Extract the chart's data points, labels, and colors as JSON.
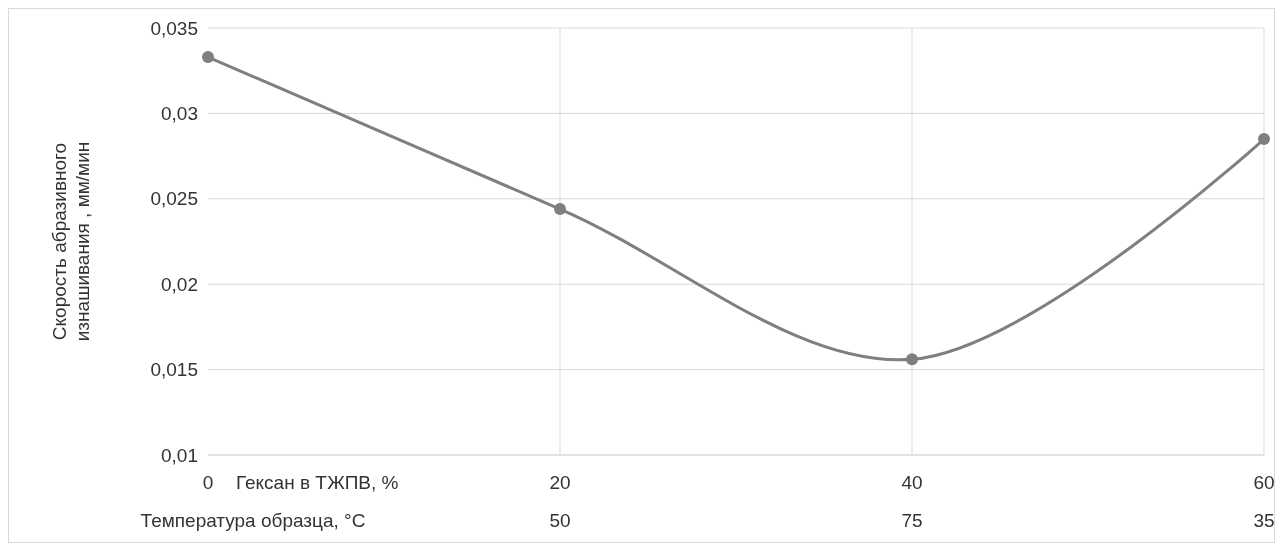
{
  "chart_data": {
    "type": "line",
    "ylabel": "Скорость абразивного изнашивания , мм/мин",
    "xlabel": "Гексан в ТЖПВ, %",
    "categories": [
      "0",
      "20",
      "40",
      "60"
    ],
    "series": [
      {
        "color": "#7f7f7f",
        "values": [
          0.0333,
          0.0244,
          0.0156,
          0.0285
        ]
      }
    ],
    "annotations": [
      "Температура образца, °C",
      "50",
      "75",
      "35"
    ],
    "ylim": [
      0.01,
      0.035
    ],
    "yticks": [
      {
        "value": 0.01,
        "label": "0,01"
      },
      {
        "value": 0.015,
        "label": "0,015"
      },
      {
        "value": 0.02,
        "label": "0,02"
      },
      {
        "value": 0.025,
        "label": "0,025"
      },
      {
        "value": 0.03,
        "label": "0,03"
      },
      {
        "value": 0.035,
        "label": "0,035"
      }
    ],
    "grid": true,
    "marker": "circle",
    "line_style": "solid"
  }
}
